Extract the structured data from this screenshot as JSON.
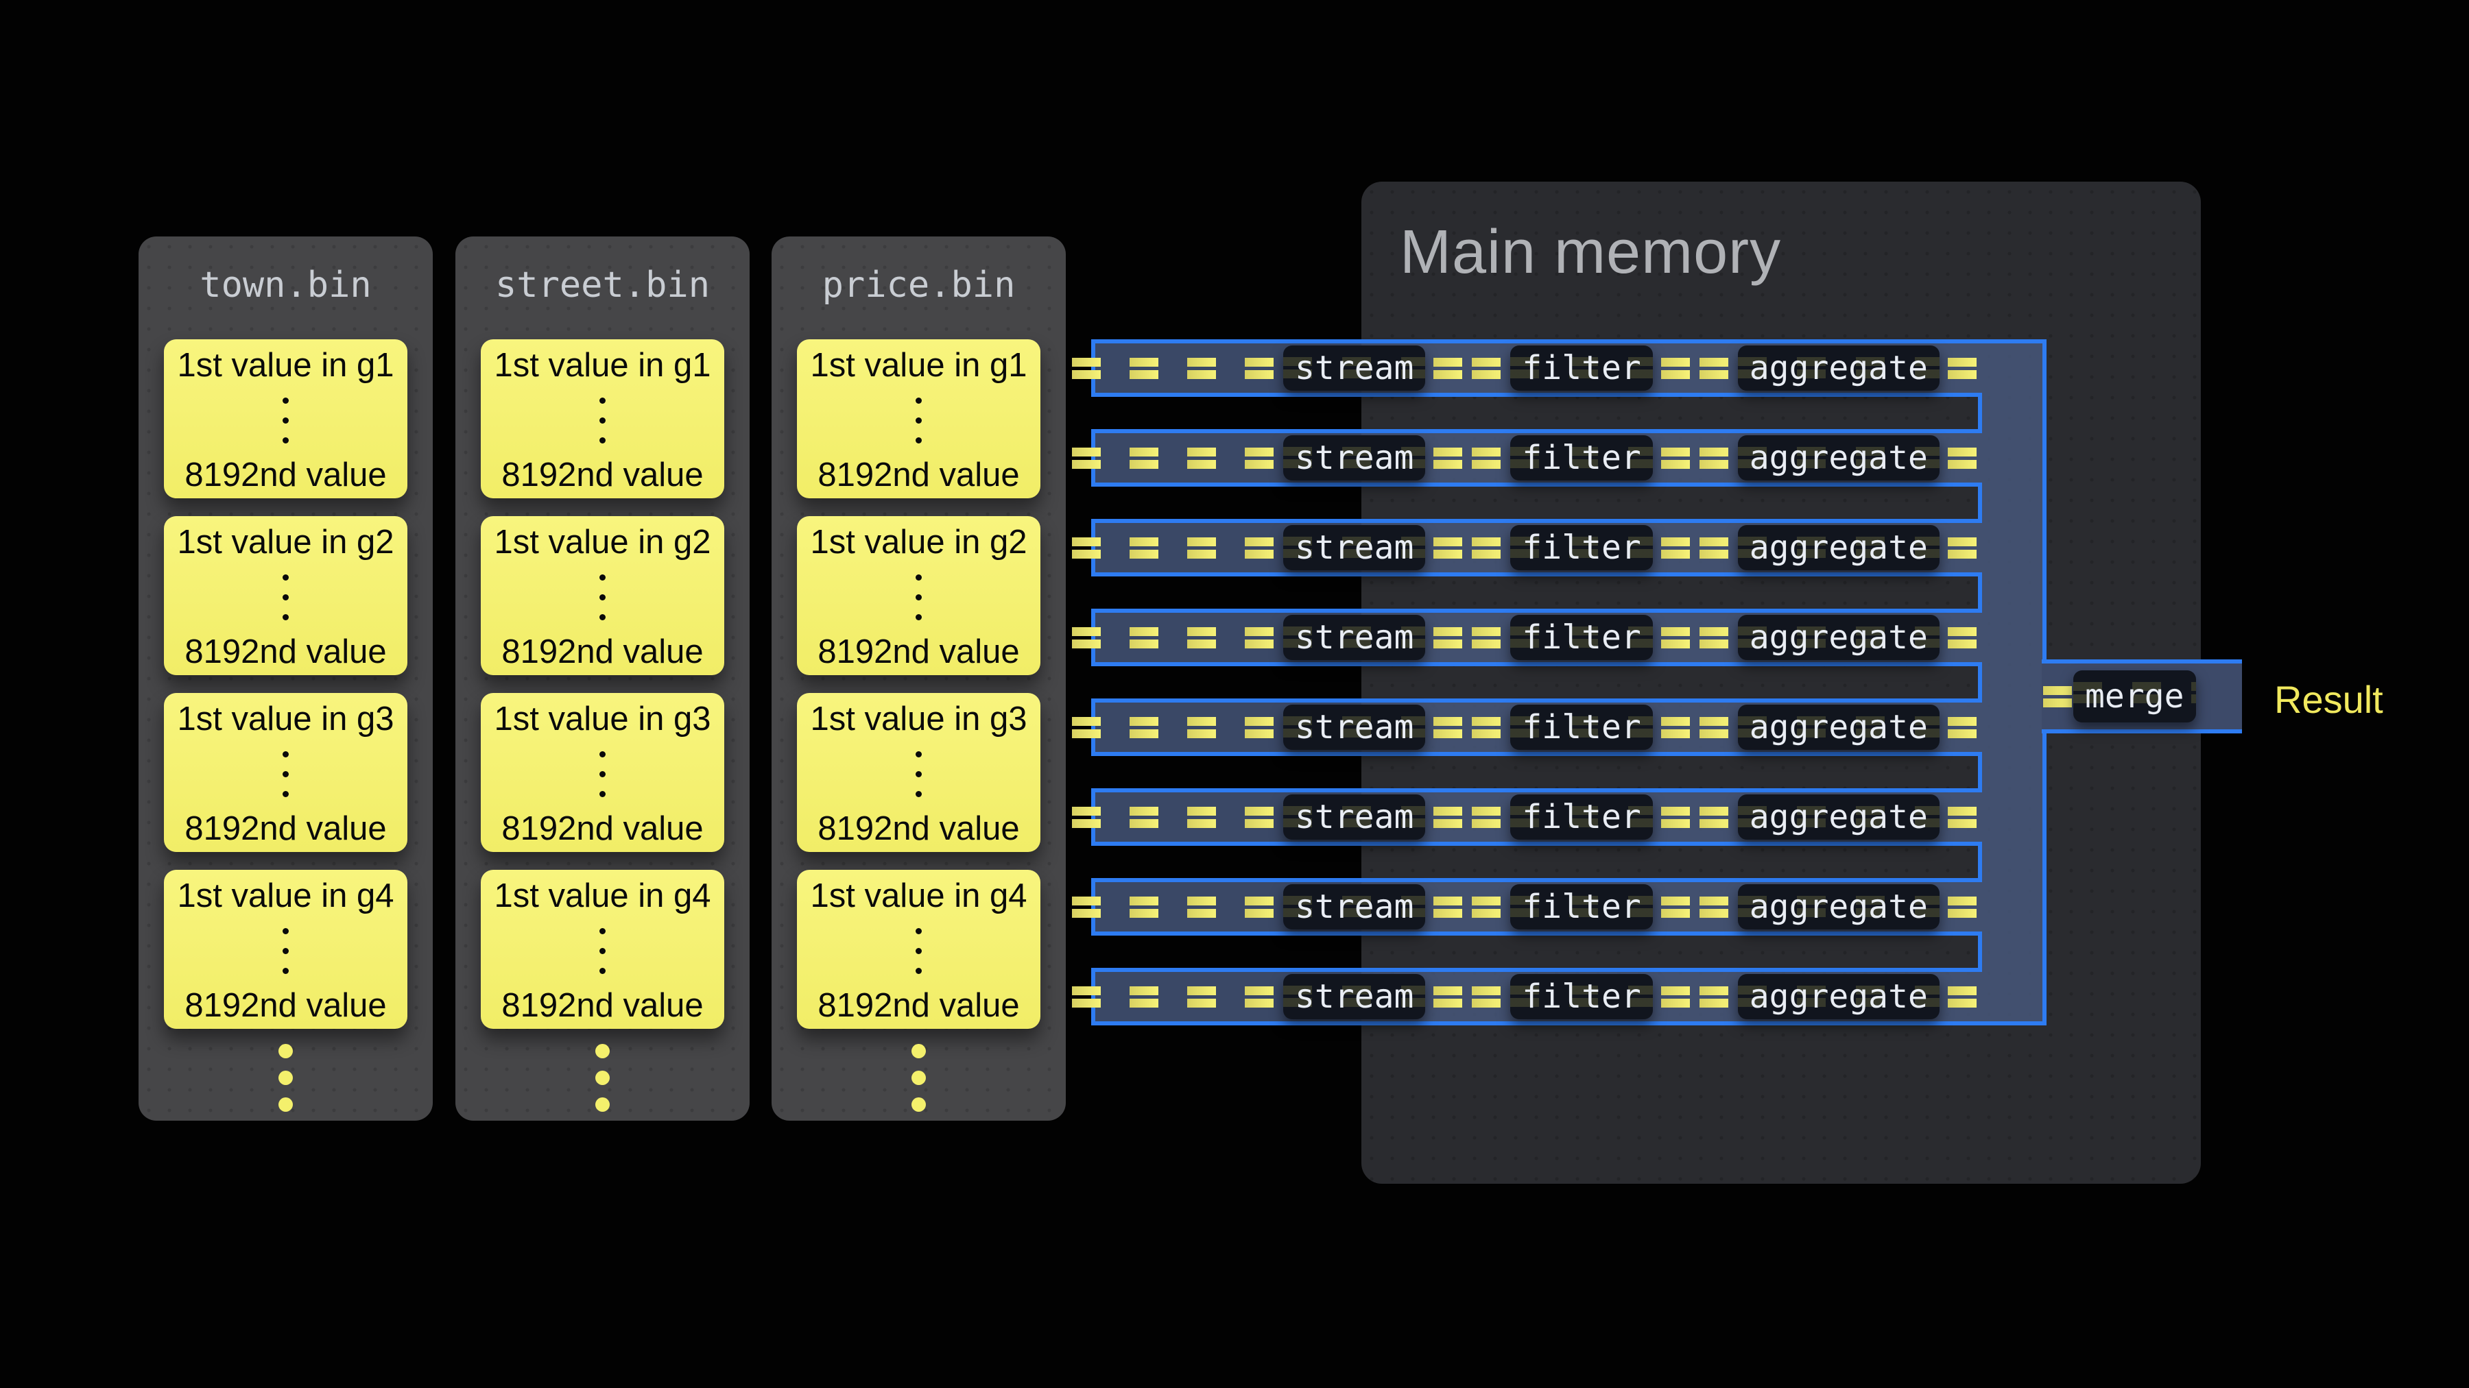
{
  "diagram": {
    "background": "#020202",
    "accent_blue": "#2e7cf2",
    "accent_yellow": "#f2ee6e",
    "panel_gray": "#464648",
    "memory_gray": "#2a2b2f"
  },
  "files": {
    "columns": [
      {
        "title": "town.bin",
        "cells": [
          {
            "top": "1st value in g1",
            "bottom": "8192nd value"
          },
          {
            "top": "1st value in g2",
            "bottom": "8192nd value"
          },
          {
            "top": "1st value in g3",
            "bottom": "8192nd value"
          },
          {
            "top": "1st value in g4",
            "bottom": "8192nd value"
          }
        ]
      },
      {
        "title": "street.bin",
        "cells": [
          {
            "top": "1st value in g1",
            "bottom": "8192nd value"
          },
          {
            "top": "1st value in g2",
            "bottom": "8192nd value"
          },
          {
            "top": "1st value in g3",
            "bottom": "8192nd value"
          },
          {
            "top": "1st value in g4",
            "bottom": "8192nd value"
          }
        ]
      },
      {
        "title": "price.bin",
        "cells": [
          {
            "top": "1st value in g1",
            "bottom": "8192nd value"
          },
          {
            "top": "1st value in g2",
            "bottom": "8192nd value"
          },
          {
            "top": "1st value in g3",
            "bottom": "8192nd value"
          },
          {
            "top": "1st value in g4",
            "bottom": "8192nd value"
          }
        ]
      }
    ]
  },
  "memory": {
    "title": "Main memory"
  },
  "pipeline": {
    "row_count": 8,
    "operators": [
      "stream",
      "filter",
      "aggregate"
    ],
    "merge_label": "merge",
    "result_label": "Result"
  }
}
